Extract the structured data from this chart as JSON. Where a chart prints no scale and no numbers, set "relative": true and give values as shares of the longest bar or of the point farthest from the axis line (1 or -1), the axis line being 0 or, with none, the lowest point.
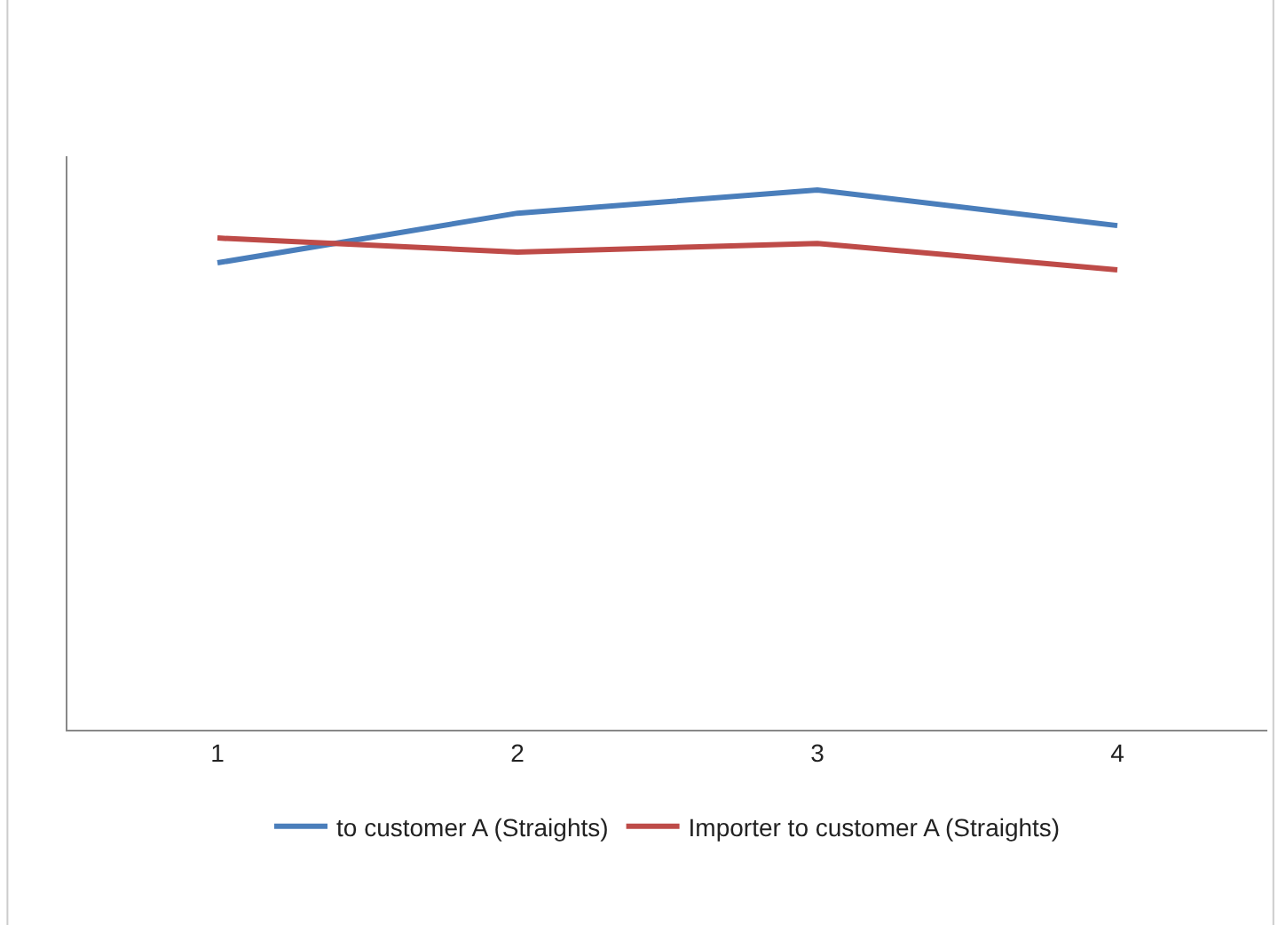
{
  "chart_data": {
    "type": "line",
    "relative": true,
    "categories": [
      "1",
      "2",
      "3",
      "4"
    ],
    "series": [
      {
        "name": "to customer A (Straights)",
        "color": "#4a7ebb",
        "values": [
          0.865,
          0.957,
          1,
          0.934
        ]
      },
      {
        "name": "Importer to customer A (Straights)",
        "color": "#be4b48",
        "values": [
          0.911,
          0.885,
          0.901,
          0.852
        ]
      }
    ],
    "legend": "bottom",
    "marker": "none",
    "line_style": "solid"
  }
}
